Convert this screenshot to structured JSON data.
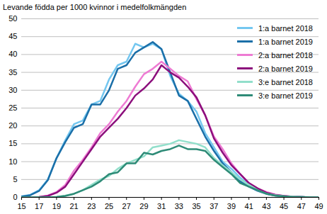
{
  "chart_data": {
    "type": "line",
    "title": "Levande födda per 1000 kvinnor i medelfolkmängden",
    "x": [
      15,
      16,
      17,
      18,
      19,
      20,
      21,
      22,
      23,
      24,
      25,
      26,
      27,
      28,
      29,
      30,
      31,
      32,
      33,
      34,
      35,
      36,
      37,
      38,
      39,
      40,
      41,
      42,
      43,
      44,
      45,
      46,
      47,
      48,
      49
    ],
    "xlim": [
      15,
      49
    ],
    "xticks": [
      15,
      17,
      19,
      21,
      23,
      25,
      27,
      29,
      31,
      33,
      35,
      37,
      39,
      41,
      43,
      45,
      47,
      49
    ],
    "ylim": [
      0,
      50
    ],
    "yticks": [
      0,
      5,
      10,
      15,
      20,
      25,
      30,
      35,
      40,
      45,
      50
    ],
    "grid": true,
    "legend": "top-right",
    "series": [
      {
        "name": "1:a barnet 2018",
        "color": "#74c7f0",
        "values": [
          0.3,
          0.7,
          2,
          5,
          11,
          16,
          20.5,
          21.5,
          26,
          27,
          33,
          37,
          38,
          43,
          42,
          43,
          41.5,
          34,
          29,
          27,
          24,
          18,
          14,
          10,
          8,
          5.5,
          3.5,
          2,
          1.2,
          0.6,
          0.3,
          0.2,
          0.1,
          0,
          0
        ]
      },
      {
        "name": "1:a barnet 2019",
        "color": "#1b6fa8",
        "values": [
          0.2,
          0.6,
          1.8,
          4.8,
          11,
          15.5,
          19.5,
          20.5,
          26,
          26,
          30,
          36,
          37,
          40.5,
          42,
          43.5,
          41.5,
          35,
          28.5,
          27,
          22,
          17,
          13,
          9.5,
          7,
          4.5,
          3,
          1.8,
          1,
          0.5,
          0.3,
          0.1,
          0.1,
          0,
          0
        ]
      },
      {
        "name": "2:a barnet 2018",
        "color": "#ee7bd3",
        "values": [
          0,
          0,
          0.1,
          0.5,
          1.5,
          3.5,
          7.5,
          10.5,
          14,
          18,
          20.5,
          24,
          27,
          31,
          34.5,
          36,
          38,
          36,
          34,
          32.5,
          27.5,
          23,
          17,
          13.5,
          9.5,
          6.5,
          4,
          2.5,
          1.5,
          0.8,
          0.4,
          0.2,
          0.1,
          0,
          0
        ]
      },
      {
        "name": "2:a barnet 2019",
        "color": "#8c0f7c",
        "values": [
          0,
          0,
          0.1,
          0.4,
          1.3,
          3,
          6.5,
          10,
          13.5,
          17,
          19.5,
          22,
          25,
          28.5,
          30.5,
          33,
          37,
          35,
          33.5,
          31,
          28,
          23,
          16.5,
          12.5,
          9,
          6.5,
          4,
          2.5,
          1.3,
          0.7,
          0.4,
          0.2,
          0.1,
          0,
          0
        ]
      },
      {
        "name": "3:e barnet 2018",
        "color": "#92dfcb",
        "values": [
          0,
          0,
          0,
          0,
          0.1,
          0.5,
          1,
          2,
          3.5,
          5,
          6,
          8,
          9.5,
          10.5,
          11.5,
          14,
          14.5,
          15,
          16,
          15.5,
          15,
          14,
          11,
          9,
          7,
          5,
          3.5,
          2,
          1,
          0.6,
          0.3,
          0.2,
          0.1,
          0,
          0
        ]
      },
      {
        "name": "3:e barnet 2019",
        "color": "#2e8b77",
        "values": [
          0,
          0,
          0,
          0,
          0.1,
          0.4,
          1,
          2,
          3,
          4.5,
          6.5,
          7,
          9.5,
          9.5,
          12.5,
          12,
          13,
          13.5,
          14.5,
          13.5,
          13.5,
          13,
          10.5,
          8.5,
          6.5,
          4,
          3,
          2,
          1,
          0.5,
          0.3,
          0.1,
          0.1,
          0,
          0
        ]
      }
    ]
  }
}
